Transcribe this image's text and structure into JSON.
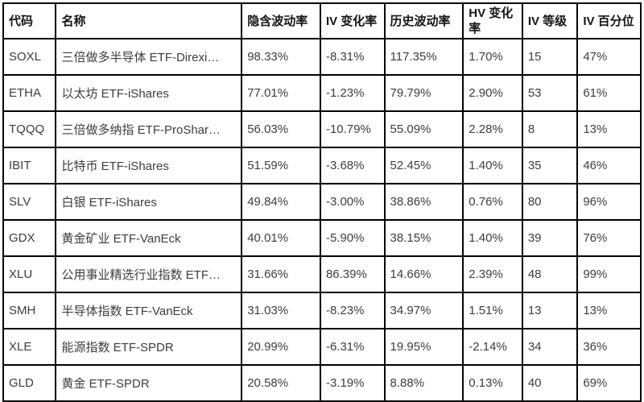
{
  "colors": {
    "background": "#ffffff",
    "grid_border": "#000000",
    "header_text": "#151515",
    "body_text": "#3d3d3d"
  },
  "table": {
    "columns": [
      {
        "key": "code",
        "label": "代码"
      },
      {
        "key": "name",
        "label": "名称"
      },
      {
        "key": "iv",
        "label": "隐含波动率"
      },
      {
        "key": "iv_change",
        "label": "IV 变化率"
      },
      {
        "key": "hv",
        "label": "历史波动率"
      },
      {
        "key": "hv_change",
        "label": "HV 变化率"
      },
      {
        "key": "iv_rank",
        "label": "IV 等级"
      },
      {
        "key": "iv_percentile",
        "label": "IV 百分位"
      }
    ],
    "rows": [
      {
        "code": "SOXL",
        "name": "三倍做多半导体 ETF-Direxi…",
        "iv": "98.33%",
        "iv_change": "-8.31%",
        "hv": "117.35%",
        "hv_change": "1.70%",
        "iv_rank": "15",
        "iv_percentile": "47%"
      },
      {
        "code": "ETHA",
        "name": "以太坊 ETF-iShares",
        "iv": "77.01%",
        "iv_change": "-1.23%",
        "hv": "79.79%",
        "hv_change": "2.90%",
        "iv_rank": "53",
        "iv_percentile": "61%"
      },
      {
        "code": "TQQQ",
        "name": "三倍做多纳指 ETF-ProShar…",
        "iv": "56.03%",
        "iv_change": "-10.79%",
        "hv": "55.09%",
        "hv_change": "2.28%",
        "iv_rank": "8",
        "iv_percentile": "13%"
      },
      {
        "code": "IBIT",
        "name": "比特币 ETF-iShares",
        "iv": "51.59%",
        "iv_change": "-3.68%",
        "hv": "52.45%",
        "hv_change": "1.40%",
        "iv_rank": "35",
        "iv_percentile": "46%"
      },
      {
        "code": "SLV",
        "name": "白银 ETF-iShares",
        "iv": "49.84%",
        "iv_change": "-3.00%",
        "hv": "38.86%",
        "hv_change": "0.76%",
        "iv_rank": "80",
        "iv_percentile": "96%"
      },
      {
        "code": "GDX",
        "name": "黄金矿业 ETF-VanEck",
        "iv": "40.01%",
        "iv_change": "-5.90%",
        "hv": "38.15%",
        "hv_change": "1.40%",
        "iv_rank": "39",
        "iv_percentile": "76%"
      },
      {
        "code": "XLU",
        "name": "公用事业精选行业指数 ETF…",
        "iv": "31.66%",
        "iv_change": "86.39%",
        "hv": "14.66%",
        "hv_change": "2.39%",
        "iv_rank": "48",
        "iv_percentile": "99%"
      },
      {
        "code": "SMH",
        "name": "半导体指数 ETF-VanEck",
        "iv": "31.03%",
        "iv_change": "-8.23%",
        "hv": "34.97%",
        "hv_change": "1.51%",
        "iv_rank": "13",
        "iv_percentile": "13%"
      },
      {
        "code": "XLE",
        "name": "能源指数 ETF-SPDR",
        "iv": "20.99%",
        "iv_change": "-6.31%",
        "hv": "19.95%",
        "hv_change": "-2.14%",
        "iv_rank": "34",
        "iv_percentile": "36%"
      },
      {
        "code": "GLD",
        "name": "黄金 ETF-SPDR",
        "iv": "20.58%",
        "iv_change": "-3.19%",
        "hv": "8.88%",
        "hv_change": "0.13%",
        "iv_rank": "40",
        "iv_percentile": "69%"
      }
    ]
  }
}
